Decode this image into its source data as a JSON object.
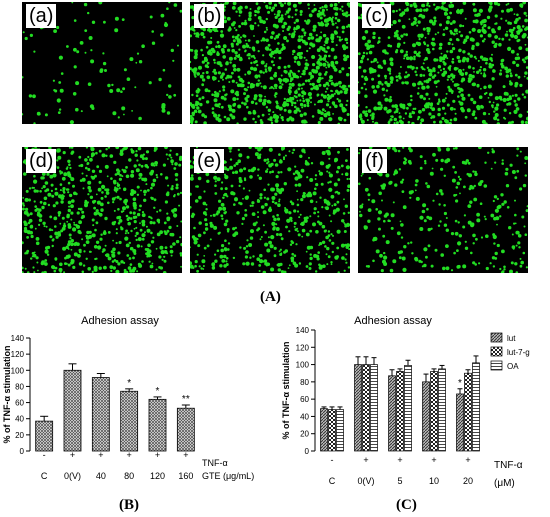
{
  "micrographs": {
    "labels": [
      "(a)",
      "(b)",
      "(c)",
      "(d)",
      "(e)",
      "(f)"
    ],
    "cell_color": "#22dd22",
    "background": "#000000",
    "relative_density": [
      0.12,
      1.0,
      0.85,
      0.75,
      0.62,
      0.35
    ]
  },
  "captions": {
    "A": "(A)",
    "B": "(B)",
    "C": "(C)"
  },
  "chart_data": [
    {
      "type": "bar",
      "title": "Adhesion assay",
      "ylabel": "% of TNF-α stimulation",
      "ylim": [
        0,
        140
      ],
      "yticks": [
        0,
        20,
        40,
        60,
        80,
        100,
        120,
        140
      ],
      "treatment_row": {
        "label": "TNF-α",
        "signs": [
          "-",
          "+",
          "+",
          "+",
          "+",
          "+"
        ]
      },
      "categories": [
        "C",
        "0(V)",
        "40",
        "80",
        "120",
        "160"
      ],
      "unit_label": "GTE (μg/mL)",
      "values": [
        37,
        100,
        91,
        74,
        64,
        53
      ],
      "errors": [
        6,
        8,
        5,
        3,
        3,
        4
      ],
      "significance": [
        "",
        "",
        "",
        "*",
        "*",
        "**"
      ]
    },
    {
      "type": "bar",
      "title": "Adhesion assay",
      "ylabel": "% of TNF-α stimulation",
      "ylim": [
        0,
        140
      ],
      "yticks": [
        0,
        20,
        40,
        60,
        80,
        100,
        120,
        140
      ],
      "treatment_row": {
        "label": "TNF-α",
        "signs": [
          "-",
          "+",
          "+",
          "+",
          "+"
        ]
      },
      "categories": [
        "C",
        "0(V)",
        "5",
        "10",
        "20"
      ],
      "unit_label": "(μM)",
      "legend_position": "top-right",
      "series": [
        {
          "name": "lut",
          "values": [
            49,
            100,
            87,
            80,
            66
          ],
          "errors": [
            2,
            9,
            7,
            9,
            6
          ],
          "significance": [
            "",
            "",
            "",
            "",
            "*"
          ]
        },
        {
          "name": "lut-7-g",
          "values": [
            48,
            100,
            92,
            92,
            90
          ],
          "errors": [
            3,
            9,
            3,
            3,
            4
          ],
          "significance": [
            "",
            "",
            "",
            "",
            ""
          ]
        },
        {
          "name": "OA",
          "values": [
            48,
            100,
            99,
            95,
            102
          ],
          "errors": [
            3,
            8,
            6,
            4,
            8
          ],
          "significance": [
            "",
            "",
            "",
            "",
            ""
          ]
        }
      ]
    }
  ]
}
